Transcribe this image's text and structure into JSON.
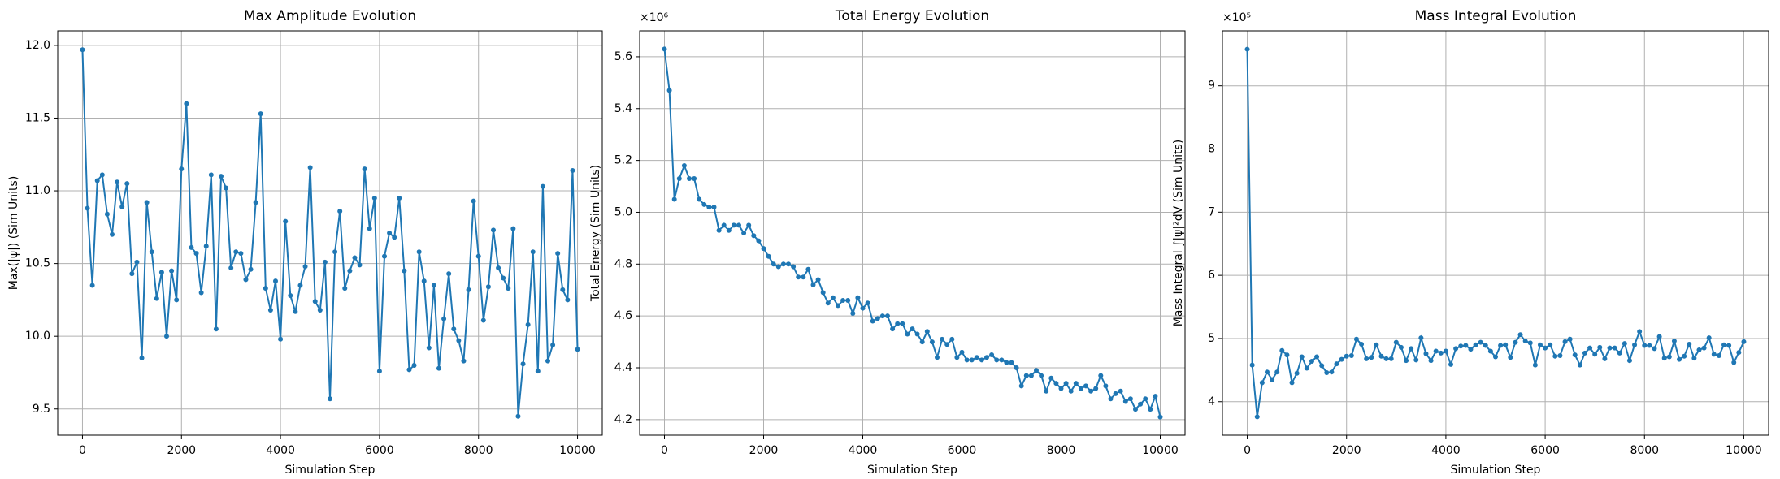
{
  "chart_data": [
    {
      "type": "line",
      "title": "Max Amplitude Evolution",
      "x_label": "Simulation Step",
      "y_label": "Max(|ψ|) (Sim Units)",
      "x": [
        0,
        100,
        200,
        300,
        400,
        500,
        600,
        700,
        800,
        900,
        1000,
        1100,
        1200,
        1300,
        1400,
        1500,
        1600,
        1700,
        1800,
        1900,
        2000,
        2100,
        2200,
        2300,
        2400,
        2500,
        2600,
        2700,
        2800,
        2900,
        3000,
        3100,
        3200,
        3300,
        3400,
        3500,
        3600,
        3700,
        3800,
        3900,
        4000,
        4100,
        4200,
        4300,
        4400,
        4500,
        4600,
        4700,
        4800,
        4900,
        5000,
        5100,
        5200,
        5300,
        5400,
        5500,
        5600,
        5700,
        5800,
        5900,
        6000,
        6100,
        6200,
        6300,
        6400,
        6500,
        6600,
        6700,
        6800,
        6900,
        7000,
        7100,
        7200,
        7300,
        7400,
        7500,
        7600,
        7700,
        7800,
        7900,
        8000,
        8100,
        8200,
        8300,
        8400,
        8500,
        8600,
        8700,
        8800,
        8900,
        9000,
        9100,
        9200,
        9300,
        9400,
        9500,
        9600,
        9700,
        9800,
        9900,
        10000
      ],
      "series": [
        {
          "color": "#1f77b4",
          "values": [
            11.97,
            10.88,
            10.35,
            11.07,
            11.11,
            10.84,
            10.7,
            11.06,
            10.89,
            11.05,
            10.43,
            10.51,
            9.85,
            10.92,
            10.58,
            10.26,
            10.44,
            10.0,
            10.45,
            10.25,
            11.15,
            11.6,
            10.61,
            10.57,
            10.3,
            10.62,
            11.11,
            10.05,
            11.1,
            11.02,
            10.47,
            10.58,
            10.57,
            10.39,
            10.46,
            10.92,
            11.53,
            10.33,
            10.18,
            10.38,
            9.98,
            10.79,
            10.28,
            10.17,
            10.35,
            10.48,
            11.16,
            10.24,
            10.18,
            10.51,
            9.57,
            10.58,
            10.86,
            10.33,
            10.45,
            10.54,
            10.49,
            11.15,
            10.74,
            10.95,
            9.76,
            10.55,
            10.71,
            10.68,
            10.95,
            10.45,
            9.77,
            9.8,
            10.58,
            10.38,
            9.92,
            10.35,
            9.78,
            10.12,
            10.43,
            10.05,
            9.97,
            9.83,
            10.32,
            10.93,
            10.55,
            10.11,
            10.34,
            10.73,
            10.47,
            10.4,
            10.33,
            10.74,
            9.45,
            9.81,
            10.08,
            10.58,
            9.76,
            11.03,
            9.83,
            9.94,
            10.57,
            10.32,
            10.25,
            11.14,
            9.91
          ]
        }
      ],
      "xlim": [
        -500,
        10500
      ],
      "xticks": [
        0,
        2000,
        4000,
        6000,
        8000,
        10000
      ],
      "ylim": [
        9.32,
        12.1
      ],
      "yticks": [
        9.5,
        {
          "value": 10,
          "label": "10.0"
        },
        10.5,
        {
          "value": 11,
          "label": "11.0"
        },
        11.5,
        {
          "value": 12,
          "label": "12.0"
        }
      ],
      "grid": true
    },
    {
      "type": "line",
      "title": "Total Energy Evolution",
      "x_label": "Simulation Step",
      "y_label": "Total Energy (Sim Units)",
      "y_offset_label": "×10⁶",
      "x": [
        0,
        100,
        200,
        300,
        400,
        500,
        600,
        700,
        800,
        900,
        1000,
        1100,
        1200,
        1300,
        1400,
        1500,
        1600,
        1700,
        1800,
        1900,
        2000,
        2100,
        2200,
        2300,
        2400,
        2500,
        2600,
        2700,
        2800,
        2900,
        3000,
        3100,
        3200,
        3300,
        3400,
        3500,
        3600,
        3700,
        3800,
        3900,
        4000,
        4100,
        4200,
        4300,
        4400,
        4500,
        4600,
        4700,
        4800,
        4900,
        5000,
        5100,
        5200,
        5300,
        5400,
        5500,
        5600,
        5700,
        5800,
        5900,
        6000,
        6100,
        6200,
        6300,
        6400,
        6500,
        6600,
        6700,
        6800,
        6900,
        7000,
        7100,
        7200,
        7300,
        7400,
        7500,
        7600,
        7700,
        7800,
        7900,
        8000,
        8100,
        8200,
        8300,
        8400,
        8500,
        8600,
        8700,
        8800,
        8900,
        9000,
        9100,
        9200,
        9300,
        9400,
        9500,
        9600,
        9700,
        9800,
        9900,
        10000
      ],
      "series": [
        {
          "color": "#1f77b4",
          "values": [
            5.63,
            5.47,
            5.05,
            5.13,
            5.18,
            5.13,
            5.13,
            5.05,
            5.03,
            5.02,
            5.02,
            4.93,
            4.95,
            4.93,
            4.95,
            4.95,
            4.92,
            4.95,
            4.91,
            4.89,
            4.86,
            4.83,
            4.8,
            4.79,
            4.8,
            4.8,
            4.79,
            4.75,
            4.75,
            4.78,
            4.72,
            4.74,
            4.69,
            4.65,
            4.67,
            4.64,
            4.66,
            4.66,
            4.61,
            4.67,
            4.63,
            4.65,
            4.58,
            4.59,
            4.6,
            4.6,
            4.55,
            4.57,
            4.57,
            4.53,
            4.55,
            4.53,
            4.5,
            4.54,
            4.5,
            4.44,
            4.51,
            4.49,
            4.51,
            4.44,
            4.46,
            4.43,
            4.43,
            4.44,
            4.43,
            4.44,
            4.45,
            4.43,
            4.43,
            4.42,
            4.42,
            4.4,
            4.33,
            4.37,
            4.37,
            4.39,
            4.37,
            4.31,
            4.36,
            4.34,
            4.32,
            4.34,
            4.31,
            4.34,
            4.32,
            4.33,
            4.31,
            4.32,
            4.37,
            4.33,
            4.28,
            4.3,
            4.31,
            4.27,
            4.28,
            4.24,
            4.26,
            4.28,
            4.24,
            4.29,
            4.21
          ]
        }
      ],
      "xlim": [
        -500,
        10500
      ],
      "xticks": [
        0,
        2000,
        4000,
        6000,
        8000,
        10000
      ],
      "ylim": [
        4.14,
        5.7
      ],
      "yticks": [
        4.2,
        4.4,
        4.6,
        4.8,
        {
          "value": 5,
          "label": "5.0"
        },
        5.2,
        5.4,
        5.6
      ],
      "grid": true
    },
    {
      "type": "line",
      "title": "Mass Integral Evolution",
      "x_label": "Simulation Step",
      "y_label": "Mass Integral ∫|ψ|²dV (Sim Units)",
      "y_offset_label": "×10⁵",
      "x": [
        0,
        100,
        200,
        300,
        400,
        500,
        600,
        700,
        800,
        900,
        1000,
        1100,
        1200,
        1300,
        1400,
        1500,
        1600,
        1700,
        1800,
        1900,
        2000,
        2100,
        2200,
        2300,
        2400,
        2500,
        2600,
        2700,
        2800,
        2900,
        3000,
        3100,
        3200,
        3300,
        3400,
        3500,
        3600,
        3700,
        3800,
        3900,
        4000,
        4100,
        4200,
        4300,
        4400,
        4500,
        4600,
        4700,
        4800,
        4900,
        5000,
        5100,
        5200,
        5300,
        5400,
        5500,
        5600,
        5700,
        5800,
        5900,
        6000,
        6100,
        6200,
        6300,
        6400,
        6500,
        6600,
        6700,
        6800,
        6900,
        7000,
        7100,
        7200,
        7300,
        7400,
        7500,
        7600,
        7700,
        7800,
        7900,
        8000,
        8100,
        8200,
        8300,
        8400,
        8500,
        8600,
        8700,
        8800,
        8900,
        9000,
        9100,
        9200,
        9300,
        9400,
        9500,
        9600,
        9700,
        9800,
        9900,
        10000
      ],
      "series": [
        {
          "color": "#1f77b4",
          "values": [
            9.58,
            4.58,
            3.76,
            4.3,
            4.47,
            4.35,
            4.47,
            4.81,
            4.74,
            4.3,
            4.45,
            4.71,
            4.53,
            4.64,
            4.71,
            4.57,
            4.46,
            4.47,
            4.6,
            4.67,
            4.72,
            4.73,
            4.99,
            4.91,
            4.68,
            4.7,
            4.9,
            4.72,
            4.68,
            4.68,
            4.94,
            4.86,
            4.65,
            4.84,
            4.66,
            5.01,
            4.76,
            4.65,
            4.8,
            4.77,
            4.8,
            4.59,
            4.84,
            4.88,
            4.89,
            4.83,
            4.9,
            4.94,
            4.89,
            4.8,
            4.71,
            4.89,
            4.9,
            4.7,
            4.94,
            5.06,
            4.96,
            4.93,
            4.58,
            4.9,
            4.85,
            4.9,
            4.72,
            4.73,
            4.95,
            4.99,
            4.74,
            4.58,
            4.77,
            4.85,
            4.75,
            4.86,
            4.68,
            4.85,
            4.85,
            4.77,
            4.92,
            4.65,
            4.9,
            5.11,
            4.89,
            4.89,
            4.84,
            5.03,
            4.69,
            4.71,
            4.96,
            4.67,
            4.72,
            4.91,
            4.69,
            4.82,
            4.85,
            5.01,
            4.75,
            4.73,
            4.9,
            4.89,
            4.62,
            4.78,
            4.95
          ]
        }
      ],
      "xlim": [
        -500,
        10500
      ],
      "xticks": [
        0,
        2000,
        4000,
        6000,
        8000,
        10000
      ],
      "ylim": [
        3.47,
        9.87
      ],
      "yticks": [
        4,
        5,
        6,
        7,
        8,
        9
      ],
      "grid": true
    }
  ]
}
